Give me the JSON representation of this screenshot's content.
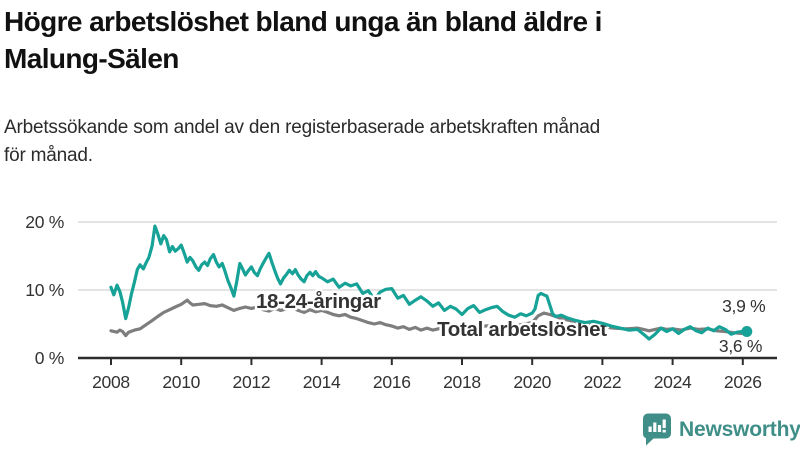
{
  "header": {
    "title": "Högre arbetslöshet bland unga än bland äldre i\nMalung-Sälen",
    "subtitle": "Arbetssökande som andel av den registerbaserade arbetskraften månad\nför månad."
  },
  "branding": {
    "logo_text": "Newsworthy",
    "logo_color": "#3f8e88",
    "logo_icon": "speech-bubble-bar-chart-exclamation"
  },
  "chart_data": {
    "type": "line",
    "title": "Högre arbetslöshet bland unga än bland äldre i Malung-Sälen",
    "xlabel": "",
    "ylabel": "",
    "unit": "%",
    "grid": true,
    "legend_position": "inline-labels",
    "x_axis": {
      "ticks": [
        2008,
        2010,
        2012,
        2014,
        2016,
        2018,
        2020,
        2022,
        2024,
        2026
      ]
    },
    "y_axis": {
      "ticks": [
        {
          "v": 0,
          "label": "0 %"
        },
        {
          "v": 10,
          "label": "10 %"
        },
        {
          "v": 20,
          "label": "20 %"
        }
      ],
      "ylim": [
        0,
        21
      ]
    },
    "colors": {
      "youth": "#17a297",
      "total": "#7e7e7e",
      "axis": "#2d2d2d",
      "grid": "#e4e4e4",
      "annotation": "#333333"
    },
    "series": [
      {
        "key": "total",
        "name": "Total arbetslöshet",
        "color": "#7e7e7e",
        "label": {
          "text": "Total arbetslöshet",
          "x": 2017.29,
          "y": 3.24
        },
        "end_dot": false,
        "points": [
          [
            2008.0,
            4.0
          ],
          [
            2008.17,
            3.8
          ],
          [
            2008.25,
            4.1
          ],
          [
            2008.33,
            3.9
          ],
          [
            2008.42,
            3.3
          ],
          [
            2008.5,
            3.8
          ],
          [
            2008.67,
            4.1
          ],
          [
            2008.83,
            4.3
          ],
          [
            2009.0,
            4.9
          ],
          [
            2009.17,
            5.5
          ],
          [
            2009.33,
            6.1
          ],
          [
            2009.5,
            6.7
          ],
          [
            2009.67,
            7.1
          ],
          [
            2009.83,
            7.5
          ],
          [
            2010.0,
            7.9
          ],
          [
            2010.17,
            8.5
          ],
          [
            2010.25,
            8.1
          ],
          [
            2010.33,
            7.8
          ],
          [
            2010.5,
            7.9
          ],
          [
            2010.67,
            8.0
          ],
          [
            2010.83,
            7.7
          ],
          [
            2011.0,
            7.6
          ],
          [
            2011.17,
            7.8
          ],
          [
            2011.33,
            7.4
          ],
          [
            2011.5,
            7.0
          ],
          [
            2011.67,
            7.3
          ],
          [
            2011.83,
            7.5
          ],
          [
            2012.0,
            7.3
          ],
          [
            2012.17,
            7.5
          ],
          [
            2012.33,
            7.1
          ],
          [
            2012.5,
            6.9
          ],
          [
            2012.67,
            7.3
          ],
          [
            2012.83,
            7.0
          ],
          [
            2013.0,
            7.2
          ],
          [
            2013.17,
            7.4
          ],
          [
            2013.33,
            7.0
          ],
          [
            2013.5,
            6.7
          ],
          [
            2013.67,
            7.1
          ],
          [
            2013.83,
            6.8
          ],
          [
            2014.0,
            7.0
          ],
          [
            2014.17,
            6.7
          ],
          [
            2014.33,
            6.4
          ],
          [
            2014.5,
            6.2
          ],
          [
            2014.67,
            6.4
          ],
          [
            2014.83,
            6.0
          ],
          [
            2015.0,
            5.8
          ],
          [
            2015.17,
            5.5
          ],
          [
            2015.33,
            5.2
          ],
          [
            2015.5,
            5.0
          ],
          [
            2015.67,
            5.2
          ],
          [
            2015.83,
            4.9
          ],
          [
            2016.0,
            4.7
          ],
          [
            2016.17,
            4.4
          ],
          [
            2016.33,
            4.6
          ],
          [
            2016.5,
            4.2
          ],
          [
            2016.67,
            4.5
          ],
          [
            2016.83,
            4.1
          ],
          [
            2017.0,
            4.4
          ],
          [
            2017.17,
            4.1
          ],
          [
            2017.33,
            4.3
          ],
          [
            2017.5,
            4.5
          ],
          [
            2017.67,
            4.2
          ],
          [
            2017.83,
            4.4
          ],
          [
            2018.0,
            4.6
          ],
          [
            2018.33,
            4.4
          ],
          [
            2018.67,
            4.7
          ],
          [
            2019.0,
            4.8
          ],
          [
            2019.33,
            4.6
          ],
          [
            2019.67,
            4.9
          ],
          [
            2020.0,
            5.2
          ],
          [
            2020.17,
            6.2
          ],
          [
            2020.33,
            6.6
          ],
          [
            2020.5,
            6.4
          ],
          [
            2020.67,
            6.1
          ],
          [
            2020.83,
            5.8
          ],
          [
            2021.0,
            5.6
          ],
          [
            2021.33,
            5.2
          ],
          [
            2021.67,
            4.9
          ],
          [
            2022.0,
            4.6
          ],
          [
            2022.33,
            4.4
          ],
          [
            2022.67,
            4.3
          ],
          [
            2023.0,
            4.4
          ],
          [
            2023.17,
            4.2
          ],
          [
            2023.33,
            4.0
          ],
          [
            2023.5,
            4.2
          ],
          [
            2023.67,
            4.4
          ],
          [
            2023.83,
            4.2
          ],
          [
            2024.0,
            4.3
          ],
          [
            2024.25,
            4.1
          ],
          [
            2024.5,
            4.4
          ],
          [
            2024.75,
            4.2
          ],
          [
            2025.0,
            4.3
          ],
          [
            2025.25,
            4.0
          ],
          [
            2025.5,
            3.9
          ],
          [
            2025.75,
            3.7
          ],
          [
            2026.0,
            3.6
          ]
        ]
      },
      {
        "key": "youth",
        "name": "18-24-åringar",
        "color": "#17a297",
        "label": {
          "text": "18-24-åringar",
          "x": 2012.13,
          "y": 7.35
        },
        "end_dot": true,
        "points": [
          [
            2008.0,
            10.4
          ],
          [
            2008.08,
            9.3
          ],
          [
            2008.17,
            10.7
          ],
          [
            2008.25,
            9.8
          ],
          [
            2008.33,
            8.2
          ],
          [
            2008.42,
            5.8
          ],
          [
            2008.5,
            7.4
          ],
          [
            2008.58,
            9.4
          ],
          [
            2008.67,
            11.2
          ],
          [
            2008.75,
            13.0
          ],
          [
            2008.83,
            13.7
          ],
          [
            2008.92,
            13.1
          ],
          [
            2009.0,
            14.0
          ],
          [
            2009.08,
            14.8
          ],
          [
            2009.17,
            16.5
          ],
          [
            2009.25,
            19.4
          ],
          [
            2009.33,
            18.3
          ],
          [
            2009.42,
            16.8
          ],
          [
            2009.5,
            18.0
          ],
          [
            2009.58,
            17.4
          ],
          [
            2009.67,
            15.6
          ],
          [
            2009.75,
            16.4
          ],
          [
            2009.83,
            15.7
          ],
          [
            2009.92,
            16.1
          ],
          [
            2010.0,
            16.6
          ],
          [
            2010.08,
            15.5
          ],
          [
            2010.17,
            14.1
          ],
          [
            2010.25,
            14.8
          ],
          [
            2010.33,
            14.3
          ],
          [
            2010.42,
            13.4
          ],
          [
            2010.5,
            12.9
          ],
          [
            2010.58,
            13.7
          ],
          [
            2010.67,
            14.1
          ],
          [
            2010.75,
            13.6
          ],
          [
            2010.83,
            14.6
          ],
          [
            2010.92,
            15.2
          ],
          [
            2011.0,
            14.1
          ],
          [
            2011.08,
            13.4
          ],
          [
            2011.17,
            13.9
          ],
          [
            2011.25,
            12.7
          ],
          [
            2011.33,
            11.4
          ],
          [
            2011.42,
            10.3
          ],
          [
            2011.5,
            9.1
          ],
          [
            2011.58,
            11.2
          ],
          [
            2011.67,
            13.9
          ],
          [
            2011.75,
            13.1
          ],
          [
            2011.83,
            12.2
          ],
          [
            2011.92,
            12.9
          ],
          [
            2012.0,
            13.4
          ],
          [
            2012.08,
            12.6
          ],
          [
            2012.17,
            12.1
          ],
          [
            2012.25,
            13.1
          ],
          [
            2012.33,
            13.9
          ],
          [
            2012.42,
            14.7
          ],
          [
            2012.5,
            15.4
          ],
          [
            2012.58,
            14.1
          ],
          [
            2012.67,
            12.8
          ],
          [
            2012.75,
            11.7
          ],
          [
            2012.83,
            10.9
          ],
          [
            2012.92,
            11.8
          ],
          [
            2013.0,
            12.3
          ],
          [
            2013.08,
            12.9
          ],
          [
            2013.17,
            12.4
          ],
          [
            2013.25,
            13.0
          ],
          [
            2013.33,
            12.2
          ],
          [
            2013.42,
            11.6
          ],
          [
            2013.5,
            11.2
          ],
          [
            2013.58,
            12.1
          ],
          [
            2013.67,
            12.6
          ],
          [
            2013.75,
            12.1
          ],
          [
            2013.83,
            12.7
          ],
          [
            2013.92,
            12.0
          ],
          [
            2014.0,
            11.8
          ],
          [
            2014.17,
            11.2
          ],
          [
            2014.33,
            11.6
          ],
          [
            2014.5,
            10.4
          ],
          [
            2014.67,
            11.0
          ],
          [
            2014.83,
            10.6
          ],
          [
            2015.0,
            10.9
          ],
          [
            2015.17,
            9.5
          ],
          [
            2015.33,
            9.9
          ],
          [
            2015.5,
            8.6
          ],
          [
            2015.67,
            9.7
          ],
          [
            2015.83,
            10.1
          ],
          [
            2016.0,
            10.2
          ],
          [
            2016.17,
            8.8
          ],
          [
            2016.33,
            9.2
          ],
          [
            2016.5,
            7.9
          ],
          [
            2016.67,
            8.5
          ],
          [
            2016.83,
            9.0
          ],
          [
            2017.0,
            8.4
          ],
          [
            2017.17,
            7.6
          ],
          [
            2017.33,
            8.1
          ],
          [
            2017.5,
            7.0
          ],
          [
            2017.67,
            7.6
          ],
          [
            2017.83,
            7.2
          ],
          [
            2018.0,
            6.4
          ],
          [
            2018.17,
            7.3
          ],
          [
            2018.33,
            7.7
          ],
          [
            2018.5,
            6.7
          ],
          [
            2018.67,
            7.1
          ],
          [
            2018.83,
            7.4
          ],
          [
            2019.0,
            7.6
          ],
          [
            2019.17,
            6.8
          ],
          [
            2019.33,
            6.3
          ],
          [
            2019.5,
            6.0
          ],
          [
            2019.67,
            6.5
          ],
          [
            2019.83,
            6.2
          ],
          [
            2020.0,
            6.6
          ],
          [
            2020.08,
            7.2
          ],
          [
            2020.17,
            9.2
          ],
          [
            2020.25,
            9.5
          ],
          [
            2020.33,
            9.3
          ],
          [
            2020.42,
            9.1
          ],
          [
            2020.5,
            7.8
          ],
          [
            2020.58,
            6.5
          ],
          [
            2020.67,
            6.1
          ],
          [
            2020.83,
            6.3
          ],
          [
            2021.0,
            5.9
          ],
          [
            2021.25,
            5.5
          ],
          [
            2021.5,
            5.2
          ],
          [
            2021.75,
            5.4
          ],
          [
            2022.0,
            5.1
          ],
          [
            2022.25,
            4.7
          ],
          [
            2022.5,
            4.4
          ],
          [
            2022.75,
            4.1
          ],
          [
            2023.0,
            4.2
          ],
          [
            2023.17,
            3.5
          ],
          [
            2023.33,
            2.8
          ],
          [
            2023.5,
            3.5
          ],
          [
            2023.67,
            4.4
          ],
          [
            2023.83,
            3.9
          ],
          [
            2024.0,
            4.3
          ],
          [
            2024.17,
            3.6
          ],
          [
            2024.33,
            4.2
          ],
          [
            2024.5,
            4.6
          ],
          [
            2024.67,
            4.0
          ],
          [
            2024.83,
            3.7
          ],
          [
            2025.0,
            4.4
          ],
          [
            2025.17,
            4.0
          ],
          [
            2025.33,
            4.6
          ],
          [
            2025.5,
            4.2
          ],
          [
            2025.67,
            3.5
          ],
          [
            2025.83,
            3.8
          ],
          [
            2026.0,
            3.9
          ]
        ]
      }
    ],
    "annotations": [
      {
        "text": "3,9 %",
        "x": 2025.41,
        "y": 6.76,
        "halo": false
      },
      {
        "text": "3,6 %",
        "x": 2025.32,
        "y": 0.88,
        "halo": true
      }
    ]
  }
}
